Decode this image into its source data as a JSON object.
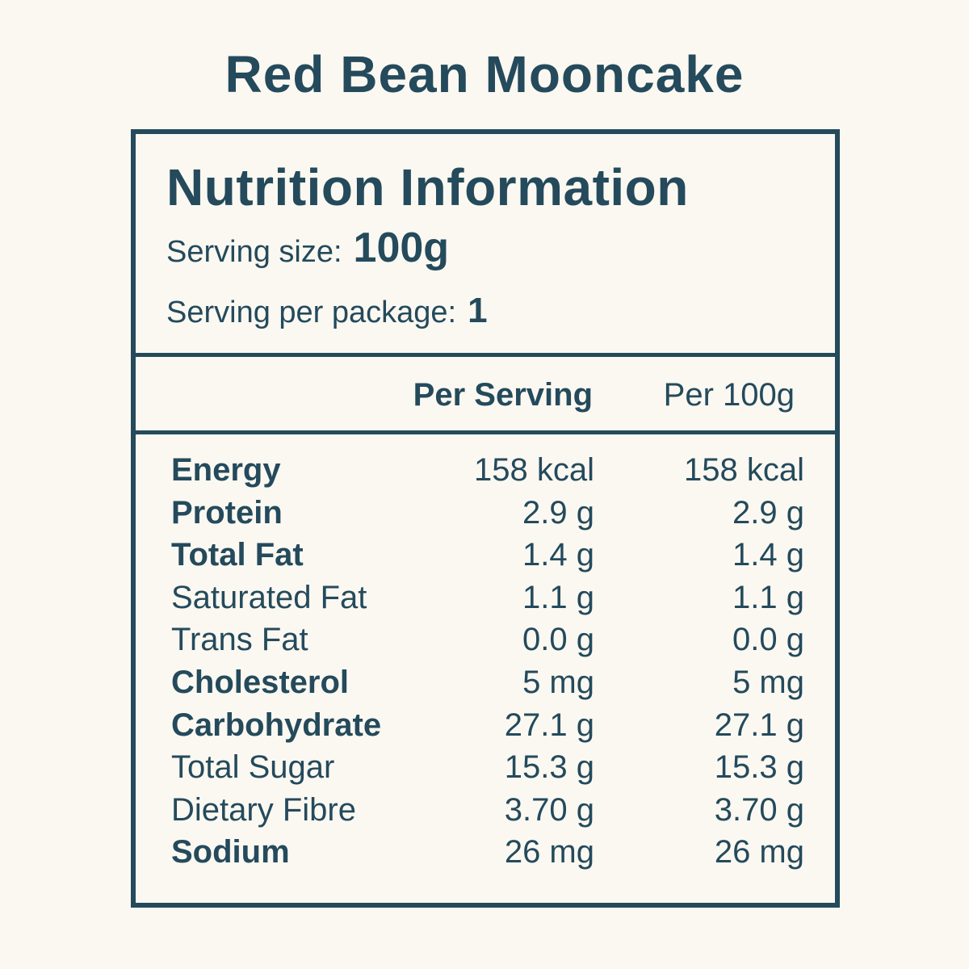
{
  "product": {
    "title": "Red Bean Mooncake"
  },
  "label": {
    "title": "Nutrition Information",
    "serving_size_label": "Serving size:",
    "serving_size_value": "100g",
    "servings_per_package_label": "Serving per package:",
    "servings_per_package_value": "1",
    "columns": {
      "per_serving": "Per Serving",
      "per_100g": "Per 100g"
    },
    "rows": [
      {
        "name": "Energy",
        "bold": true,
        "per_serving": "158 kcal",
        "per_100g": "158 kcal"
      },
      {
        "name": "Protein",
        "bold": true,
        "per_serving": "2.9 g",
        "per_100g": "2.9 g"
      },
      {
        "name": "Total Fat",
        "bold": true,
        "per_serving": "1.4 g",
        "per_100g": "1.4 g"
      },
      {
        "name": "Saturated Fat",
        "bold": false,
        "per_serving": "1.1 g",
        "per_100g": "1.1 g"
      },
      {
        "name": "Trans Fat",
        "bold": false,
        "per_serving": "0.0 g",
        "per_100g": "0.0 g"
      },
      {
        "name": "Cholesterol",
        "bold": true,
        "per_serving": "5 mg",
        "per_100g": "5 mg"
      },
      {
        "name": "Carbohydrate",
        "bold": true,
        "per_serving": "27.1 g",
        "per_100g": "27.1 g"
      },
      {
        "name": "Total Sugar",
        "bold": false,
        "per_serving": "15.3 g",
        "per_100g": "15.3 g"
      },
      {
        "name": "Dietary Fibre",
        "bold": false,
        "per_serving": "3.70 g",
        "per_100g": "3.70 g"
      },
      {
        "name": "Sodium",
        "bold": true,
        "per_serving": "26 mg",
        "per_100g": "26 mg"
      }
    ]
  },
  "colors": {
    "background": "#fbf8f1",
    "ink": "#244a5c"
  }
}
